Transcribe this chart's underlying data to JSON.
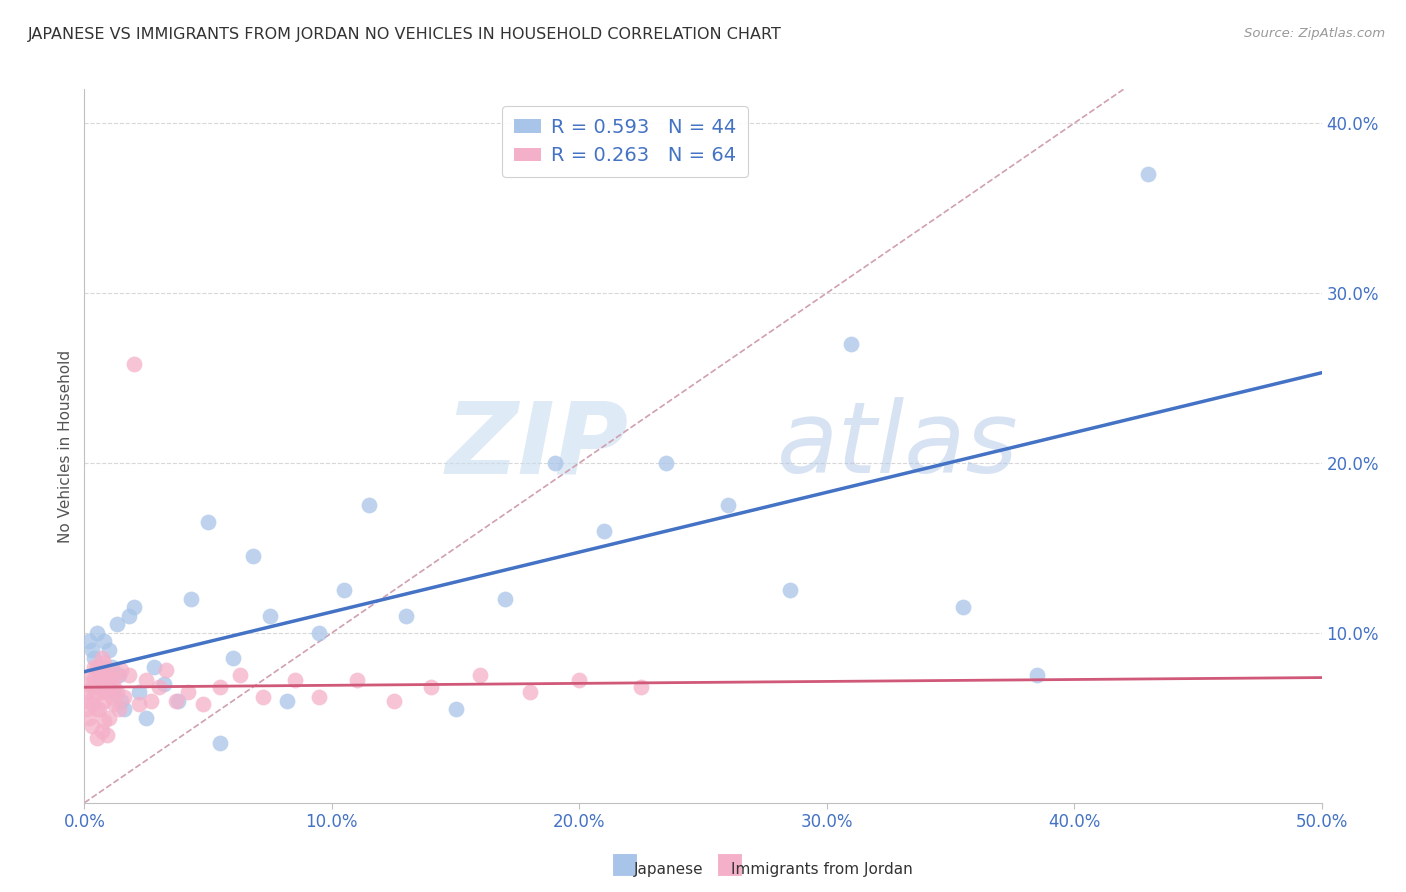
{
  "title": "JAPANESE VS IMMIGRANTS FROM JORDAN NO VEHICLES IN HOUSEHOLD CORRELATION CHART",
  "source": "Source: ZipAtlas.com",
  "ylabel": "No Vehicles in Household",
  "xlabel_japanese": "Japanese",
  "xlabel_jordan": "Immigrants from Jordan",
  "watermark_zip": "ZIP",
  "watermark_atlas": "atlas",
  "xmin": 0.0,
  "xmax": 0.5,
  "ymin": 0.0,
  "ymax": 0.42,
  "R_japanese": 0.593,
  "N_japanese": 44,
  "R_jordan": 0.263,
  "N_jordan": 64,
  "color_japanese": "#a8c4e8",
  "color_jordan": "#f4b0c8",
  "color_japanese_line": "#4472c4",
  "color_jordan_line": "#d05878",
  "color_diag_line": "#d0a0b0",
  "jap_x": [
    0.002,
    0.003,
    0.004,
    0.005,
    0.006,
    0.007,
    0.008,
    0.009,
    0.01,
    0.011,
    0.012,
    0.013,
    0.014,
    0.015,
    0.016,
    0.018,
    0.02,
    0.022,
    0.025,
    0.028,
    0.032,
    0.038,
    0.043,
    0.05,
    0.055,
    0.06,
    0.068,
    0.075,
    0.082,
    0.095,
    0.105,
    0.115,
    0.13,
    0.15,
    0.17,
    0.19,
    0.21,
    0.235,
    0.26,
    0.285,
    0.31,
    0.355,
    0.385,
    0.43
  ],
  "jap_y": [
    0.095,
    0.09,
    0.085,
    0.1,
    0.075,
    0.08,
    0.095,
    0.07,
    0.09,
    0.08,
    0.065,
    0.105,
    0.075,
    0.06,
    0.055,
    0.11,
    0.115,
    0.065,
    0.05,
    0.08,
    0.07,
    0.06,
    0.12,
    0.165,
    0.035,
    0.085,
    0.145,
    0.11,
    0.06,
    0.1,
    0.125,
    0.175,
    0.11,
    0.055,
    0.12,
    0.2,
    0.16,
    0.2,
    0.175,
    0.125,
    0.27,
    0.115,
    0.075,
    0.37
  ],
  "jor_x": [
    0.001,
    0.001,
    0.002,
    0.002,
    0.002,
    0.003,
    0.003,
    0.003,
    0.003,
    0.004,
    0.004,
    0.004,
    0.005,
    0.005,
    0.005,
    0.005,
    0.006,
    0.006,
    0.006,
    0.007,
    0.007,
    0.007,
    0.007,
    0.008,
    0.008,
    0.008,
    0.008,
    0.009,
    0.009,
    0.009,
    0.01,
    0.01,
    0.01,
    0.011,
    0.011,
    0.012,
    0.012,
    0.013,
    0.013,
    0.014,
    0.015,
    0.016,
    0.018,
    0.02,
    0.022,
    0.025,
    0.027,
    0.03,
    0.033,
    0.037,
    0.042,
    0.048,
    0.055,
    0.063,
    0.072,
    0.085,
    0.095,
    0.11,
    0.125,
    0.14,
    0.16,
    0.18,
    0.2,
    0.225
  ],
  "jor_y": [
    0.055,
    0.065,
    0.06,
    0.07,
    0.05,
    0.058,
    0.068,
    0.075,
    0.045,
    0.063,
    0.073,
    0.08,
    0.055,
    0.07,
    0.08,
    0.038,
    0.068,
    0.078,
    0.055,
    0.065,
    0.075,
    0.042,
    0.085,
    0.06,
    0.072,
    0.048,
    0.082,
    0.065,
    0.075,
    0.04,
    0.068,
    0.078,
    0.05,
    0.062,
    0.072,
    0.058,
    0.068,
    0.065,
    0.075,
    0.055,
    0.078,
    0.062,
    0.075,
    0.258,
    0.058,
    0.072,
    0.06,
    0.068,
    0.078,
    0.06,
    0.065,
    0.058,
    0.068,
    0.075,
    0.062,
    0.072,
    0.062,
    0.072,
    0.06,
    0.068,
    0.075,
    0.065,
    0.072,
    0.068
  ]
}
